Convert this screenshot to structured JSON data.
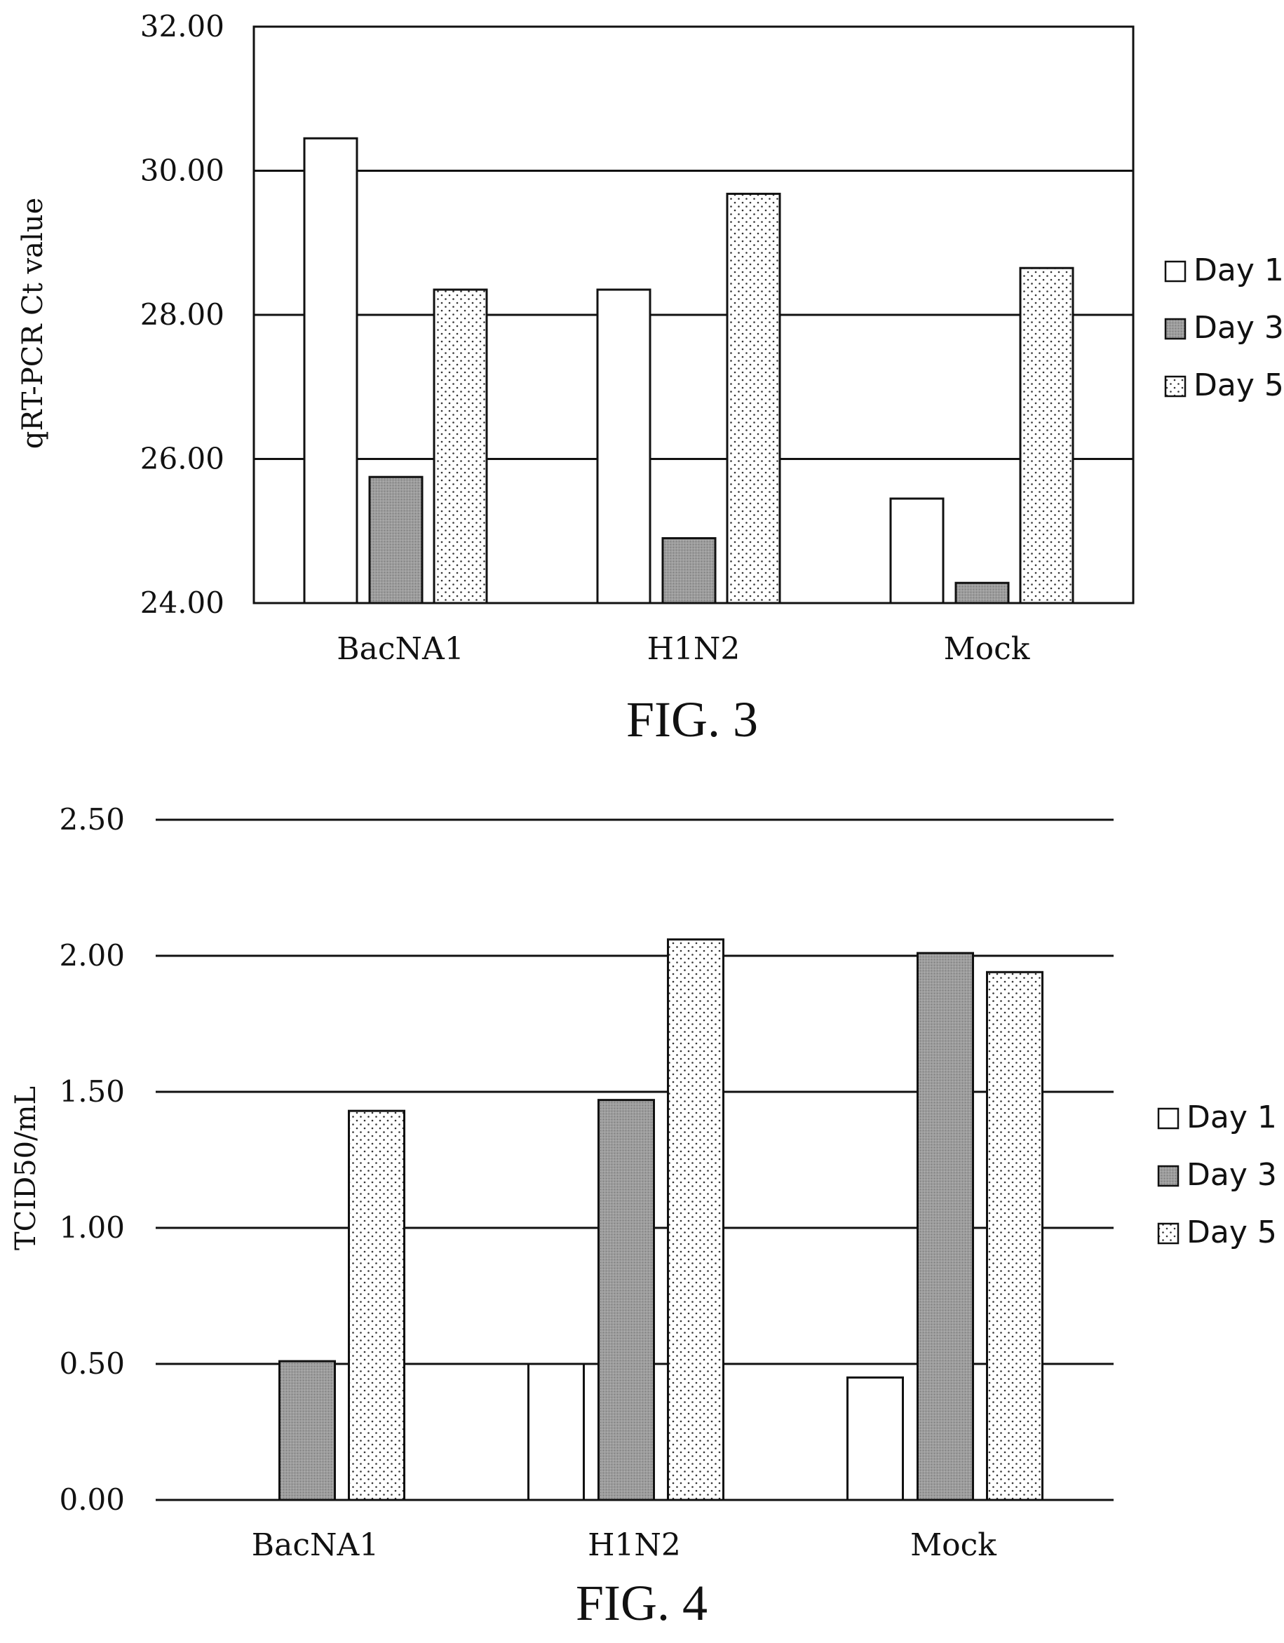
{
  "colors": {
    "day1": "#ffffff",
    "day3": "#9a9a9a",
    "day5": "#ffffff",
    "stroke": "#111111"
  },
  "chart_data": [
    {
      "type": "bar",
      "caption": "FIG. 3",
      "title": "",
      "xlabel": "",
      "ylabel": "qRT-PCR Ct value",
      "ylim": [
        24,
        32
      ],
      "yticks": [
        "24.00",
        "26.00",
        "28.00",
        "30.00",
        "32.00"
      ],
      "ytick_values": [
        24,
        26,
        28,
        30,
        32
      ],
      "grid": true,
      "frame": true,
      "legend_position": "right",
      "categories": [
        "BacNA1",
        "H1N2",
        "Mock"
      ],
      "series": [
        {
          "name": "Day 1",
          "pattern": "white",
          "values": [
            30.45,
            28.35,
            25.45
          ]
        },
        {
          "name": "Day 3",
          "pattern": "gray",
          "values": [
            25.75,
            24.9,
            24.28
          ]
        },
        {
          "name": "Day 5",
          "pattern": "dots",
          "values": [
            28.35,
            29.68,
            28.65
          ]
        }
      ]
    },
    {
      "type": "bar",
      "caption": "FIG. 4",
      "title": "",
      "xlabel": "",
      "ylabel": "TCID50/mL",
      "ylim": [
        0,
        2.5
      ],
      "yticks": [
        "0.00",
        "0.50",
        "1.00",
        "1.50",
        "2.00",
        "2.50"
      ],
      "ytick_values": [
        0,
        0.5,
        1,
        1.5,
        2,
        2.5
      ],
      "grid": true,
      "frame": false,
      "legend_position": "right",
      "categories": [
        "BacNA1",
        "H1N2",
        "Mock"
      ],
      "series": [
        {
          "name": "Day 1",
          "pattern": "white",
          "values": [
            0,
            0.5,
            0.45
          ]
        },
        {
          "name": "Day 3",
          "pattern": "gray",
          "values": [
            0.51,
            1.47,
            2.01
          ]
        },
        {
          "name": "Day 5",
          "pattern": "dots",
          "values": [
            1.43,
            2.06,
            1.94
          ]
        }
      ]
    }
  ]
}
